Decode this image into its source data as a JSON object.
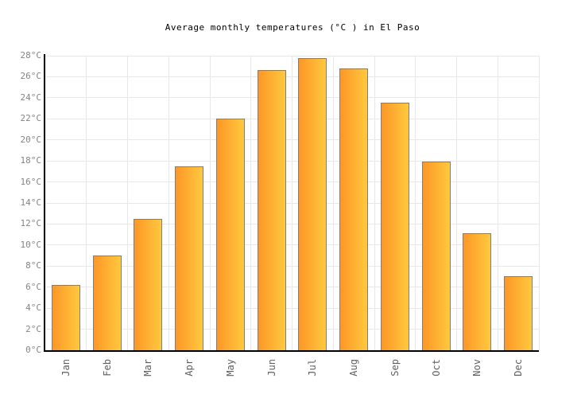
{
  "chart_data": {
    "type": "bar",
    "title": "Average monthly temperatures (°C ) in El Paso",
    "categories": [
      "Jan",
      "Feb",
      "Mar",
      "Apr",
      "May",
      "Jun",
      "Jul",
      "Aug",
      "Sep",
      "Oct",
      "Nov",
      "Dec"
    ],
    "values": [
      6.2,
      9.0,
      12.5,
      17.5,
      22.0,
      26.6,
      27.8,
      26.8,
      23.5,
      17.9,
      11.1,
      7.0
    ],
    "unit": "°C",
    "xlabel": "",
    "ylabel": "",
    "ylim": [
      0,
      28
    ],
    "ytick_step": 2,
    "ytick_labels": [
      "0°C",
      "2°C",
      "4°C",
      "6°C",
      "8°C",
      "10°C",
      "12°C",
      "14°C",
      "16°C",
      "18°C",
      "20°C",
      "22°C",
      "24°C",
      "26°C",
      "28°C"
    ],
    "grid": "on",
    "legend_position": "none"
  },
  "colors": {
    "background": "#ffffff",
    "title_text": "#000000",
    "bar_gradient_left": "#fd9727",
    "bar_gradient_right": "#ffc83e",
    "bar_border": "#7d7d87",
    "grid_line": "#e8e8e8",
    "axis_line": "#000000",
    "y_tick_label": "#848484",
    "x_tick_label": "#5f5f5f"
  }
}
